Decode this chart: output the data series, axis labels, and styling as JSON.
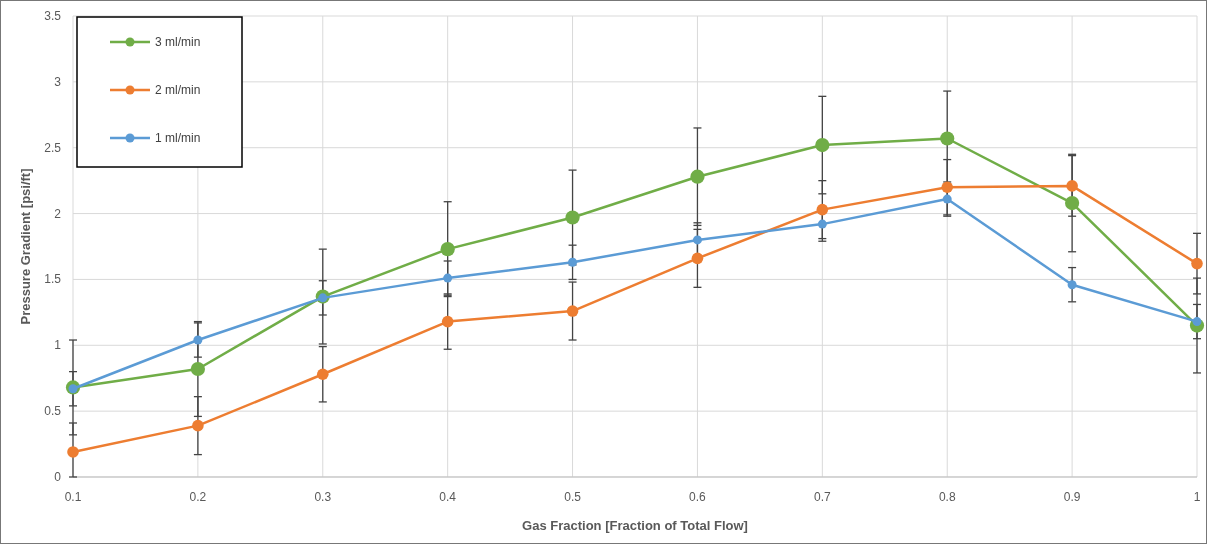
{
  "chart_data": {
    "type": "line",
    "xlabel": "Gas Fraction [Fraction of Total Flow]",
    "ylabel": "Pressure Gradient [psi/ft]",
    "x": [
      0.1,
      0.2,
      0.3,
      0.4,
      0.5,
      0.6,
      0.7,
      0.8,
      0.9,
      1
    ],
    "xlim": [
      0.1,
      1
    ],
    "xticks": [
      0.1,
      0.2,
      0.3,
      0.4,
      0.5,
      0.6,
      0.7,
      0.8,
      0.9,
      1
    ],
    "ylim": [
      0,
      3.5
    ],
    "yticks": [
      0,
      0.5,
      1,
      1.5,
      2,
      2.5,
      3,
      3.5
    ],
    "grid": true,
    "legend": "top left",
    "marker": "circle",
    "line_style": "solid",
    "series": [
      {
        "name": "3 ml/min",
        "color": "#70ad47",
        "values": [
          0.68,
          0.82,
          1.37,
          1.73,
          1.97,
          2.28,
          2.52,
          2.57,
          2.08,
          1.15
        ],
        "errors": [
          0.36,
          0.36,
          0.36,
          0.36,
          0.36,
          0.37,
          0.37,
          0.36,
          0.37,
          0.36
        ]
      },
      {
        "name": "2 ml/min",
        "color": "#ed7d31",
        "values": [
          0.19,
          0.39,
          0.78,
          1.18,
          1.26,
          1.66,
          2.03,
          2.2,
          2.21,
          1.62
        ],
        "errors": [
          [
            0,
            0.41
          ],
          0.22,
          0.21,
          0.21,
          0.22,
          0.22,
          0.22,
          0.21,
          0.23,
          0.23
        ]
      },
      {
        "name": "1 ml/min",
        "color": "#5b9bd5",
        "values": [
          0.67,
          1.04,
          1.36,
          1.51,
          1.63,
          1.8,
          1.92,
          2.11,
          1.46,
          1.18
        ],
        "errors": [
          0.13,
          0.13,
          0.13,
          0.13,
          0.13,
          0.13,
          0.13,
          0.13,
          0.13,
          0.13
        ]
      }
    ]
  }
}
